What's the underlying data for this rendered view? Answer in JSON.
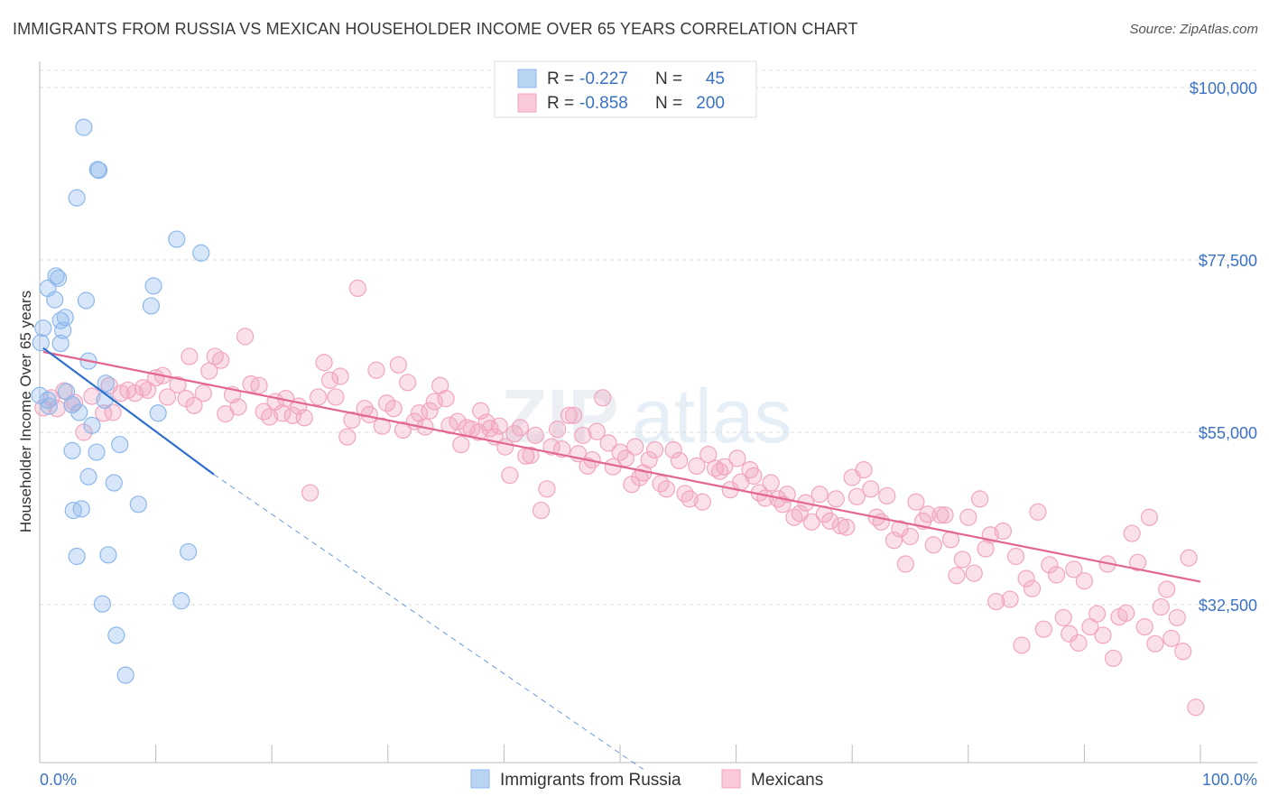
{
  "title": "IMMIGRANTS FROM RUSSIA VS MEXICAN HOUSEHOLDER INCOME OVER 65 YEARS CORRELATION CHART",
  "source": "Source: ZipAtlas.com",
  "colors": {
    "russia": "#8db8ec",
    "russia_line": "#2f6fcf",
    "mexican": "#f2a5bf",
    "mexican_line": "#e2668f",
    "axis_text": "#3b72c4"
  },
  "legend": {
    "rows": [
      {
        "r_label": "R =",
        "r_value": "-0.227",
        "n_label": "N =",
        "n_value": "45"
      },
      {
        "r_label": "R =",
        "r_value": "-0.858",
        "n_label": "N =",
        "n_value": "200"
      }
    ]
  },
  "chart_data": {
    "type": "scatter",
    "xlabel": "",
    "ylabel": "Householder Income Over 65 years",
    "x_tick_labels": [
      "0.0%",
      "100.0%"
    ],
    "y_tick_labels": [
      "$100,000",
      "$77,500",
      "$55,000",
      "$32,500"
    ],
    "xlim": [
      0,
      100
    ],
    "ylim": [
      12000,
      104000
    ],
    "grid": true,
    "legend_placement": "bottom",
    "series": [
      {
        "name": "Immigrants from Russia",
        "trend": {
          "x0": 0.3,
          "y0": 66000,
          "x1": 15,
          "y1": 49500,
          "dashed_to_x": 52,
          "dashed_to_y": 11000
        },
        "points": [
          [
            3.8,
            94.8
          ],
          [
            5.0,
            89.3
          ],
          [
            5.1,
            89.2
          ],
          [
            3.2,
            85.6
          ],
          [
            11.8,
            80.2
          ],
          [
            13.9,
            78.4
          ],
          [
            1.4,
            75.4
          ],
          [
            1.6,
            75.1
          ],
          [
            0.7,
            73.8
          ],
          [
            9.8,
            74.1
          ],
          [
            1.3,
            72.3
          ],
          [
            4.0,
            72.2
          ],
          [
            9.6,
            71.5
          ],
          [
            2.2,
            70.0
          ],
          [
            1.8,
            69.6
          ],
          [
            0.3,
            68.6
          ],
          [
            2.0,
            68.3
          ],
          [
            0.1,
            66.7
          ],
          [
            1.8,
            66.6
          ],
          [
            4.2,
            64.3
          ],
          [
            5.7,
            61.4
          ],
          [
            0.7,
            59.2
          ],
          [
            0.8,
            58.4
          ],
          [
            2.3,
            60.3
          ],
          [
            2.8,
            58.6
          ],
          [
            5.6,
            59.2
          ],
          [
            10.2,
            57.5
          ],
          [
            3.4,
            57.6
          ],
          [
            4.5,
            55.9
          ],
          [
            6.9,
            53.4
          ],
          [
            2.8,
            52.6
          ],
          [
            4.9,
            52.4
          ],
          [
            4.2,
            49.2
          ],
          [
            6.4,
            48.4
          ],
          [
            8.5,
            45.6
          ],
          [
            3.6,
            45.0
          ],
          [
            2.9,
            44.8
          ],
          [
            3.2,
            38.8
          ],
          [
            5.9,
            39.0
          ],
          [
            12.8,
            39.4
          ],
          [
            5.4,
            32.6
          ],
          [
            12.2,
            33.0
          ],
          [
            6.6,
            28.5
          ],
          [
            7.4,
            23.3
          ],
          [
            0.0,
            59.8
          ]
        ]
      },
      {
        "name": "Mexicans",
        "trend": {
          "x0": 0.3,
          "y0": 65500,
          "x1": 100,
          "y1": 35500
        },
        "points": [
          [
            0.3,
            58.2
          ],
          [
            1.0,
            59.5
          ],
          [
            1.5,
            58.1
          ],
          [
            2.1,
            60.4
          ],
          [
            2.8,
            58.6
          ],
          [
            3.0,
            58.9
          ],
          [
            3.8,
            55.0
          ],
          [
            4.5,
            59.7
          ],
          [
            5.5,
            57.5
          ],
          [
            6.0,
            61.1
          ],
          [
            6.3,
            57.6
          ],
          [
            7.0,
            60.1
          ],
          [
            7.6,
            60.5
          ],
          [
            8.2,
            60.1
          ],
          [
            8.9,
            60.8
          ],
          [
            9.3,
            60.5
          ],
          [
            10.0,
            62.1
          ],
          [
            10.6,
            62.4
          ],
          [
            11.0,
            59.6
          ],
          [
            11.9,
            61.2
          ],
          [
            12.6,
            59.4
          ],
          [
            12.9,
            64.9
          ],
          [
            13.3,
            58.5
          ],
          [
            14.1,
            60.1
          ],
          [
            14.6,
            63.0
          ],
          [
            15.1,
            64.9
          ],
          [
            15.6,
            64.4
          ],
          [
            16.0,
            57.4
          ],
          [
            16.6,
            59.9
          ],
          [
            17.1,
            58.3
          ],
          [
            17.7,
            67.5
          ],
          [
            18.2,
            61.3
          ],
          [
            18.9,
            61.1
          ],
          [
            19.3,
            57.7
          ],
          [
            19.8,
            57.0
          ],
          [
            20.3,
            59.0
          ],
          [
            20.9,
            57.5
          ],
          [
            21.2,
            59.4
          ],
          [
            21.8,
            57.2
          ],
          [
            22.3,
            58.4
          ],
          [
            22.8,
            56.9
          ],
          [
            23.3,
            47.1
          ],
          [
            24.0,
            59.6
          ],
          [
            24.5,
            64.1
          ],
          [
            25.0,
            61.8
          ],
          [
            25.5,
            59.6
          ],
          [
            25.9,
            62.3
          ],
          [
            26.5,
            54.4
          ],
          [
            26.9,
            56.6
          ],
          [
            27.4,
            73.8
          ],
          [
            28.0,
            58.1
          ],
          [
            28.4,
            57.3
          ],
          [
            29.0,
            63.1
          ],
          [
            29.5,
            55.8
          ],
          [
            29.9,
            58.8
          ],
          [
            30.5,
            58.1
          ],
          [
            30.9,
            63.8
          ],
          [
            31.3,
            55.3
          ],
          [
            31.7,
            61.5
          ],
          [
            32.3,
            56.4
          ],
          [
            32.7,
            57.5
          ],
          [
            33.2,
            55.7
          ],
          [
            33.6,
            57.8
          ],
          [
            34.0,
            59.0
          ],
          [
            34.5,
            61.1
          ],
          [
            35.0,
            59.4
          ],
          [
            35.3,
            55.9
          ],
          [
            36.0,
            56.4
          ],
          [
            36.3,
            53.4
          ],
          [
            36.8,
            55.6
          ],
          [
            37.2,
            55.4
          ],
          [
            37.8,
            55.0
          ],
          [
            38.0,
            57.8
          ],
          [
            38.5,
            56.3
          ],
          [
            38.8,
            55.5
          ],
          [
            39.2,
            54.4
          ],
          [
            39.6,
            55.8
          ],
          [
            40.1,
            53.1
          ],
          [
            40.5,
            49.4
          ],
          [
            40.9,
            54.8
          ],
          [
            41.4,
            55.6
          ],
          [
            41.9,
            51.9
          ],
          [
            42.3,
            52.0
          ],
          [
            42.7,
            54.6
          ],
          [
            43.2,
            44.8
          ],
          [
            43.7,
            47.6
          ],
          [
            44.1,
            53.1
          ],
          [
            44.6,
            55.4
          ],
          [
            45.0,
            52.8
          ],
          [
            45.6,
            57.2
          ],
          [
            46.0,
            57.2
          ],
          [
            46.4,
            52.2
          ],
          [
            46.8,
            54.6
          ],
          [
            47.2,
            50.6
          ],
          [
            47.6,
            51.4
          ],
          [
            48.0,
            55.1
          ],
          [
            48.5,
            59.5
          ],
          [
            49.0,
            53.6
          ],
          [
            49.4,
            50.5
          ],
          [
            50.0,
            52.4
          ],
          [
            50.5,
            51.6
          ],
          [
            51.0,
            48.2
          ],
          [
            51.3,
            53.1
          ],
          [
            51.7,
            49.1
          ],
          [
            52.0,
            49.7
          ],
          [
            52.5,
            51.4
          ],
          [
            53.0,
            52.7
          ],
          [
            53.5,
            48.3
          ],
          [
            54.0,
            47.6
          ],
          [
            54.6,
            52.7
          ],
          [
            55.1,
            51.3
          ],
          [
            55.6,
            47.0
          ],
          [
            56.0,
            46.3
          ],
          [
            56.6,
            50.6
          ],
          [
            57.1,
            45.9
          ],
          [
            57.6,
            52.1
          ],
          [
            58.2,
            50.3
          ],
          [
            58.6,
            49.9
          ],
          [
            59.0,
            50.5
          ],
          [
            59.5,
            47.5
          ],
          [
            60.1,
            51.6
          ],
          [
            60.4,
            48.5
          ],
          [
            61.2,
            50.1
          ],
          [
            61.5,
            49.3
          ],
          [
            62.0,
            47.1
          ],
          [
            62.5,
            46.4
          ],
          [
            63.0,
            48.4
          ],
          [
            63.6,
            46.3
          ],
          [
            64.0,
            45.6
          ],
          [
            64.4,
            46.9
          ],
          [
            65.0,
            43.9
          ],
          [
            65.5,
            44.4
          ],
          [
            66.0,
            45.8
          ],
          [
            66.5,
            43.3
          ],
          [
            67.2,
            46.9
          ],
          [
            67.6,
            44.3
          ],
          [
            68.1,
            43.4
          ],
          [
            68.6,
            46.3
          ],
          [
            69.0,
            42.8
          ],
          [
            69.5,
            42.6
          ],
          [
            70.0,
            49.1
          ],
          [
            70.4,
            46.6
          ],
          [
            71.0,
            50.1
          ],
          [
            71.6,
            47.6
          ],
          [
            72.1,
            43.9
          ],
          [
            72.5,
            43.3
          ],
          [
            73.0,
            46.7
          ],
          [
            73.6,
            40.9
          ],
          [
            74.1,
            42.4
          ],
          [
            74.6,
            37.8
          ],
          [
            75.0,
            41.4
          ],
          [
            75.5,
            45.9
          ],
          [
            76.1,
            43.4
          ],
          [
            76.5,
            44.3
          ],
          [
            77.0,
            40.3
          ],
          [
            77.6,
            44.2
          ],
          [
            78.0,
            44.2
          ],
          [
            78.5,
            41.0
          ],
          [
            79.0,
            36.3
          ],
          [
            79.5,
            38.4
          ],
          [
            80.0,
            43.9
          ],
          [
            80.5,
            36.6
          ],
          [
            81.0,
            46.3
          ],
          [
            81.5,
            39.8
          ],
          [
            81.9,
            41.6
          ],
          [
            82.4,
            32.9
          ],
          [
            83.0,
            42.1
          ],
          [
            83.6,
            33.2
          ],
          [
            84.1,
            38.8
          ],
          [
            84.6,
            27.2
          ],
          [
            85.0,
            35.9
          ],
          [
            85.5,
            34.6
          ],
          [
            86.0,
            44.6
          ],
          [
            86.5,
            29.3
          ],
          [
            87.0,
            37.7
          ],
          [
            87.6,
            36.4
          ],
          [
            88.2,
            30.8
          ],
          [
            88.7,
            28.7
          ],
          [
            89.1,
            37.1
          ],
          [
            89.5,
            27.5
          ],
          [
            90.0,
            35.6
          ],
          [
            90.5,
            29.6
          ],
          [
            91.1,
            31.3
          ],
          [
            91.6,
            28.5
          ],
          [
            92.0,
            37.8
          ],
          [
            92.5,
            25.5
          ],
          [
            93.0,
            30.9
          ],
          [
            93.6,
            31.4
          ],
          [
            94.1,
            41.8
          ],
          [
            94.6,
            38.0
          ],
          [
            95.2,
            29.6
          ],
          [
            95.6,
            43.9
          ],
          [
            96.1,
            27.4
          ],
          [
            96.6,
            32.2
          ],
          [
            97.1,
            34.5
          ],
          [
            97.5,
            28.1
          ],
          [
            98.0,
            30.8
          ],
          [
            98.5,
            26.4
          ],
          [
            99.0,
            38.6
          ],
          [
            99.6,
            19.1
          ]
        ]
      }
    ]
  },
  "bottom_legend": [
    "Immigrants from Russia",
    "Mexicans"
  ],
  "watermark": "ZIPatlas"
}
